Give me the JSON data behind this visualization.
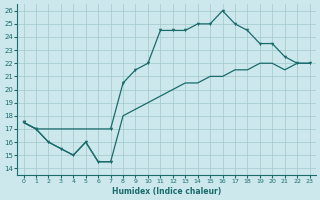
{
  "xlabel": "Humidex (Indice chaleur)",
  "background_color": "#cce8ec",
  "line_color": "#1a6b6b",
  "grid_color": "#a0c8cc",
  "xlim": [
    -0.5,
    23.5
  ],
  "ylim": [
    13.5,
    26.5
  ],
  "xticks": [
    0,
    1,
    2,
    3,
    4,
    5,
    6,
    7,
    8,
    9,
    10,
    11,
    12,
    13,
    14,
    15,
    16,
    17,
    18,
    19,
    20,
    21,
    22,
    23
  ],
  "yticks": [
    14,
    15,
    16,
    17,
    18,
    19,
    20,
    21,
    22,
    23,
    24,
    25,
    26
  ],
  "line_zigzag_x": [
    0,
    1,
    2,
    3,
    4,
    5,
    6,
    7
  ],
  "line_zigzag_y": [
    17.5,
    17,
    16,
    15.5,
    15,
    16,
    14.5,
    14.5
  ],
  "line_diag_x": [
    0,
    1,
    2,
    3,
    4,
    5,
    6,
    7,
    8,
    9,
    10,
    11,
    12,
    13,
    14,
    15,
    16,
    17,
    18,
    19,
    20,
    21,
    22,
    23
  ],
  "line_diag_y": [
    17.5,
    17,
    16,
    15.5,
    15,
    16,
    14.5,
    14.5,
    18.0,
    18.5,
    19.0,
    19.5,
    20.0,
    20.5,
    20.5,
    21.0,
    21.0,
    21.5,
    21.5,
    22.0,
    22.0,
    21.5,
    22.0,
    22.0
  ],
  "line_upper_x": [
    0,
    1,
    7,
    8,
    9,
    10,
    11,
    12,
    13,
    14,
    15,
    16,
    17,
    18,
    19,
    20,
    21,
    22,
    23
  ],
  "line_upper_y": [
    17.5,
    17,
    17,
    20.5,
    21.5,
    22.0,
    24.5,
    24.5,
    24.5,
    25.0,
    25.0,
    26.0,
    25.0,
    24.5,
    23.5,
    23.5,
    22.5,
    22.0,
    22.0
  ]
}
